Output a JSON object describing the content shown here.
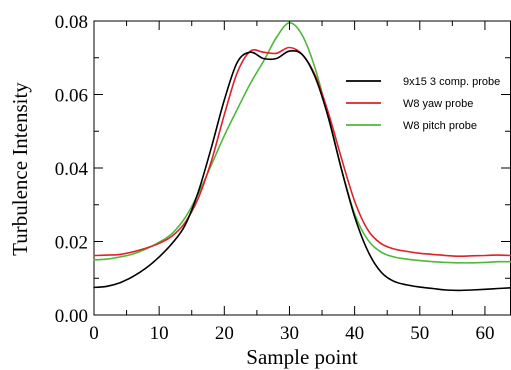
{
  "chart_data": {
    "type": "line",
    "xlabel": "Sample point",
    "ylabel": "Turbulence Intensity",
    "xlim": [
      0,
      64
    ],
    "ylim": [
      0,
      0.08
    ],
    "x_ticks": [
      0,
      10,
      20,
      30,
      40,
      50,
      60
    ],
    "x_tick_labels": [
      "0",
      "10",
      "20",
      "30",
      "40",
      "50",
      "60"
    ],
    "y_ticks": [
      0,
      0.02,
      0.04,
      0.06,
      0.08
    ],
    "y_tick_labels": [
      "0.00",
      "0.02",
      "0.04",
      "0.06",
      "0.08"
    ],
    "grid": false,
    "legend_position": "right",
    "series": [
      {
        "name": "9x15 3 comp. probe",
        "color": "#000000",
        "x": [
          0,
          2,
          4,
          6,
          8,
          10,
          12,
          14,
          16,
          18,
          20,
          22,
          24,
          26,
          28,
          30,
          32,
          34,
          36,
          38,
          40,
          42,
          44,
          46,
          48,
          50,
          52,
          54,
          56,
          58,
          60,
          62,
          64
        ],
        "y": [
          0.0075,
          0.0078,
          0.0088,
          0.0105,
          0.0128,
          0.0158,
          0.0195,
          0.0245,
          0.0335,
          0.0455,
          0.0585,
          0.0688,
          0.0715,
          0.0698,
          0.0698,
          0.0718,
          0.0708,
          0.0645,
          0.0535,
          0.0395,
          0.0268,
          0.0175,
          0.0118,
          0.0092,
          0.0082,
          0.0076,
          0.0072,
          0.0068,
          0.0067,
          0.0068,
          0.007,
          0.0072,
          0.0074
        ]
      },
      {
        "name": "W8 yaw probe",
        "color": "#e0202a",
        "x": [
          0,
          2,
          4,
          6,
          8,
          10,
          12,
          14,
          16,
          18,
          20,
          22,
          24,
          26,
          28,
          30,
          32,
          34,
          36,
          38,
          40,
          42,
          44,
          46,
          48,
          50,
          52,
          54,
          56,
          58,
          60,
          62,
          64
        ],
        "y": [
          0.0162,
          0.0163,
          0.0165,
          0.0172,
          0.0182,
          0.0195,
          0.0215,
          0.0252,
          0.0318,
          0.0418,
          0.0545,
          0.066,
          0.0718,
          0.0715,
          0.0712,
          0.0728,
          0.0708,
          0.065,
          0.0548,
          0.0425,
          0.031,
          0.0232,
          0.0195,
          0.018,
          0.0173,
          0.0168,
          0.0165,
          0.0162,
          0.016,
          0.0161,
          0.0162,
          0.0163,
          0.0162
        ]
      },
      {
        "name": "W8 pitch probe",
        "color": "#4fb83a",
        "x": [
          0,
          2,
          4,
          6,
          8,
          10,
          12,
          14,
          16,
          18,
          20,
          22,
          24,
          26,
          28,
          30,
          32,
          34,
          36,
          38,
          40,
          42,
          44,
          46,
          48,
          50,
          52,
          54,
          56,
          58,
          60,
          62,
          64
        ],
        "y": [
          0.015,
          0.0152,
          0.0158,
          0.0166,
          0.018,
          0.0198,
          0.0222,
          0.0265,
          0.033,
          0.0408,
          0.0488,
          0.056,
          0.063,
          0.069,
          0.0755,
          0.0795,
          0.076,
          0.0668,
          0.0535,
          0.0395,
          0.0275,
          0.0205,
          0.0172,
          0.0158,
          0.0152,
          0.0148,
          0.0145,
          0.0143,
          0.0142,
          0.0142,
          0.0143,
          0.0145,
          0.0145
        ]
      }
    ]
  }
}
